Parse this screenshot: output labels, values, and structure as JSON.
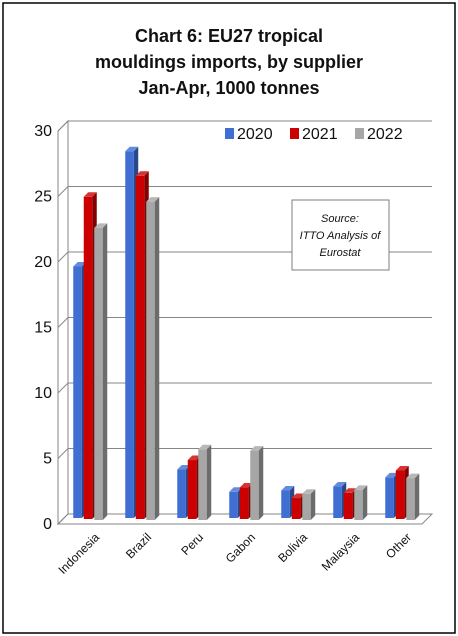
{
  "chart_data": {
    "type": "bar",
    "title": "Chart 6: EU27 tropical mouldings imports, by supplier Jan-Apr, 1000 tonnes",
    "title_lines": [
      "Chart 6: EU27 tropical",
      "mouldings imports, by supplier",
      "Jan-Apr, 1000 tonnes"
    ],
    "categories": [
      "Indonesia",
      "Brazil",
      "Peru",
      "Gabon",
      "Bolivia",
      "Malaysia",
      "Other"
    ],
    "series": [
      {
        "name": "2020",
        "color": "#3f6fd3",
        "values": [
          19.2,
          28.0,
          3.7,
          2.0,
          2.1,
          2.4,
          3.1
        ]
      },
      {
        "name": "2021",
        "color": "#cc0000",
        "values": [
          24.6,
          26.2,
          4.5,
          2.4,
          1.6,
          2.0,
          3.7
        ]
      },
      {
        "name": "2022",
        "color": "#a6a6a6",
        "values": [
          22.3,
          24.3,
          5.4,
          5.3,
          2.0,
          2.3,
          3.2
        ]
      }
    ],
    "yticks": [
      "0",
      "5",
      "10",
      "15",
      "20",
      "25",
      "30"
    ],
    "ylim": [
      0,
      30
    ],
    "xlabel": "",
    "ylabel": "",
    "grid": true,
    "legend": "top-right",
    "annotation": [
      "Source:",
      "ITTO Analysis of",
      "Eurostat"
    ]
  }
}
